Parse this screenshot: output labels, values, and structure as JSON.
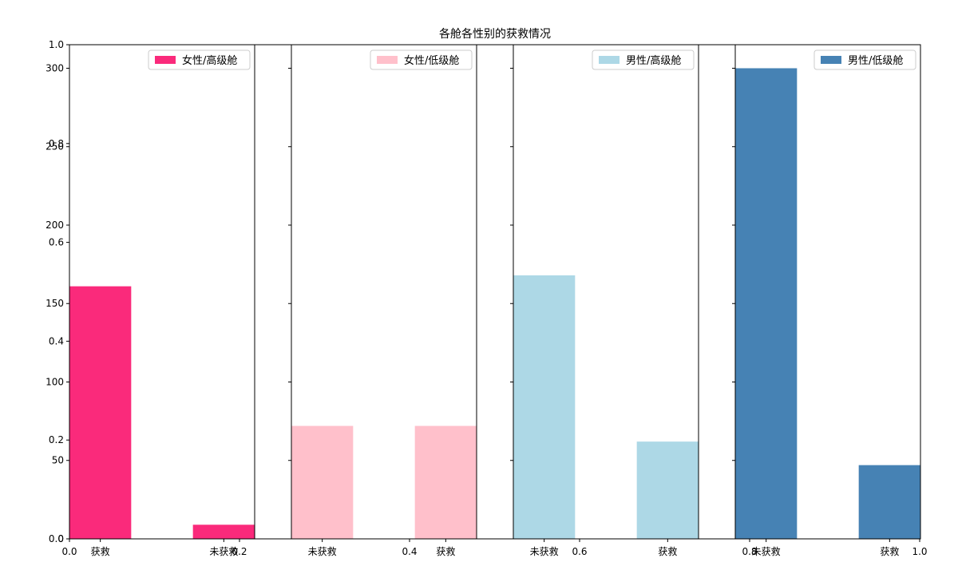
{
  "chart_data": [
    {
      "type": "figure",
      "title": "各舱各性别的获救情况",
      "xlim": [
        0,
        1
      ],
      "ylim": [
        0,
        1
      ],
      "ticks": [
        "0.0",
        "0.2",
        "0.4",
        "0.6",
        "0.8",
        "1.0"
      ],
      "tick_values": [
        0,
        0.2,
        0.4,
        0.6,
        0.8,
        1.0
      ]
    },
    {
      "type": "bar",
      "categories": [
        "获救",
        "未获救"
      ],
      "series": [
        {
          "name": "女性/高级舱",
          "values": [
            161,
            9
          ]
        }
      ],
      "color": "#FA2A7B",
      "ylim": [
        0,
        315
      ],
      "yticks": [
        0,
        50,
        100,
        150,
        200,
        250,
        300
      ],
      "ytick_labels": [
        "0",
        "50",
        "100",
        "150",
        "200",
        "250",
        "300"
      ],
      "legend": "top-right"
    },
    {
      "type": "bar",
      "categories": [
        "未获救",
        "获救"
      ],
      "series": [
        {
          "name": "女性/低级舱",
          "values": [
            72,
            72
          ]
        }
      ],
      "color": "#FFC0CB",
      "ylim": [
        0,
        315
      ],
      "legend": "top-right"
    },
    {
      "type": "bar",
      "categories": [
        "未获救",
        "获救"
      ],
      "series": [
        {
          "name": "男性/高级舱",
          "values": [
            168,
            62
          ]
        }
      ],
      "color": "#ADD8E6",
      "ylim": [
        0,
        315
      ],
      "legend": "top-right"
    },
    {
      "type": "bar",
      "categories": [
        "未获救",
        "获救"
      ],
      "series": [
        {
          "name": "男性/低级舱",
          "values": [
            300,
            47
          ]
        }
      ],
      "color": "#4682B4",
      "ylim": [
        0,
        315
      ],
      "legend": "top-right"
    }
  ]
}
